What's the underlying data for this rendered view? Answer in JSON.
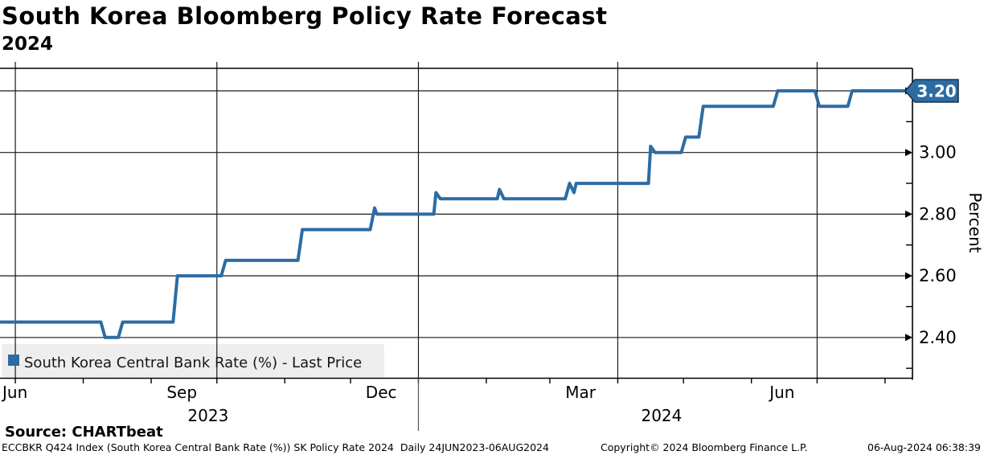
{
  "header": {
    "title": "South Korea Bloomberg Policy Rate Forecast",
    "subtitle": "2024"
  },
  "legend": {
    "label": "South Korea Central Bank Rate (%) - Last Price",
    "swatch_color": "#2d6ca3",
    "background": "#eeeeee"
  },
  "y_axis": {
    "title": "Percent",
    "tick_labels": [
      "3.20",
      "3.00",
      "2.80",
      "2.60",
      "2.40"
    ],
    "tick_values": [
      3.2,
      3.0,
      2.8,
      2.6,
      2.4
    ],
    "minor_tick_values": [
      3.1,
      2.9,
      2.7,
      2.5,
      2.3
    ],
    "last_price_label": "3.20",
    "badge_fill": "#2d6ca3",
    "badge_border": "#16304d"
  },
  "x_axis": {
    "month_labels": [
      {
        "label": "Jun",
        "center_date": "2023-06-24",
        "anchor": "start"
      },
      {
        "label": "Sep",
        "center_date": "2023-09-15",
        "anchor": "middle"
      },
      {
        "label": "Dec",
        "center_date": "2023-12-15",
        "anchor": "middle"
      },
      {
        "label": "Mar",
        "center_date": "2024-03-15",
        "anchor": "middle"
      },
      {
        "label": "Jun",
        "center_date": "2024-06-15",
        "anchor": "middle"
      }
    ],
    "year_labels": [
      {
        "label": "2023",
        "center_date": "2023-09-27"
      },
      {
        "label": "2024",
        "center_date": "2024-04-21"
      }
    ],
    "month_tick_dates": [
      "2023-07-01",
      "2023-08-01",
      "2023-09-01",
      "2023-10-01",
      "2023-11-01",
      "2023-12-01",
      "2024-01-01",
      "2024-02-01",
      "2024-03-01",
      "2024-04-01",
      "2024-05-01",
      "2024-06-01",
      "2024-07-01",
      "2024-08-01"
    ],
    "quarter_gridline_dates": [
      "2023-07-01",
      "2023-10-01",
      "2024-01-01",
      "2024-04-01",
      "2024-07-01"
    ],
    "year_separator_date": "2024-01-01"
  },
  "footer": {
    "source": "Source: CHARTbeat",
    "description": "ECCBKR Q424 Index (South Korea Central Bank Rate (%)) SK Policy Rate 2024  Daily 24JUN2023-06AUG2024",
    "copyright": "Copyright© 2024 Bloomberg Finance L.P.",
    "timestamp": "06-Aug-2024 06:38:39"
  },
  "chart_data": {
    "type": "line",
    "title": "South Korea Bloomberg Policy Rate Forecast 2024",
    "xlabel": "",
    "ylabel": "Percent",
    "ylim": [
      2.27,
      3.27
    ],
    "x_range": [
      "2023-06-24",
      "2024-08-06"
    ],
    "grid": "on",
    "legend_position": "bottom-left",
    "last_price": 3.2,
    "series": [
      {
        "name": "South Korea Central Bank Rate (%) - Last Price",
        "color": "#2d6ca3",
        "points": [
          [
            "2023-06-24",
            2.45
          ],
          [
            "2023-08-09",
            2.45
          ],
          [
            "2023-08-11",
            2.4
          ],
          [
            "2023-08-17",
            2.4
          ],
          [
            "2023-08-19",
            2.45
          ],
          [
            "2023-09-11",
            2.45
          ],
          [
            "2023-09-13",
            2.6
          ],
          [
            "2023-10-03",
            2.6
          ],
          [
            "2023-10-05",
            2.65
          ],
          [
            "2023-11-07",
            2.65
          ],
          [
            "2023-11-09",
            2.75
          ],
          [
            "2023-12-10",
            2.75
          ],
          [
            "2023-12-12",
            2.82
          ],
          [
            "2023-12-13",
            2.8
          ],
          [
            "2024-01-08",
            2.8
          ],
          [
            "2024-01-09",
            2.87
          ],
          [
            "2024-01-11",
            2.85
          ],
          [
            "2024-02-06",
            2.85
          ],
          [
            "2024-02-07",
            2.88
          ],
          [
            "2024-02-09",
            2.85
          ],
          [
            "2024-03-08",
            2.85
          ],
          [
            "2024-03-10",
            2.9
          ],
          [
            "2024-03-12",
            2.87
          ],
          [
            "2024-03-13",
            2.9
          ],
          [
            "2024-04-15",
            2.9
          ],
          [
            "2024-04-16",
            3.02
          ],
          [
            "2024-04-18",
            3.0
          ],
          [
            "2024-04-30",
            3.0
          ],
          [
            "2024-05-02",
            3.05
          ],
          [
            "2024-05-08",
            3.05
          ],
          [
            "2024-05-10",
            3.15
          ],
          [
            "2024-06-11",
            3.15
          ],
          [
            "2024-06-13",
            3.2
          ],
          [
            "2024-06-30",
            3.2
          ],
          [
            "2024-07-02",
            3.15
          ],
          [
            "2024-07-15",
            3.15
          ],
          [
            "2024-07-17",
            3.2
          ],
          [
            "2024-08-06",
            3.2
          ]
        ]
      }
    ]
  }
}
